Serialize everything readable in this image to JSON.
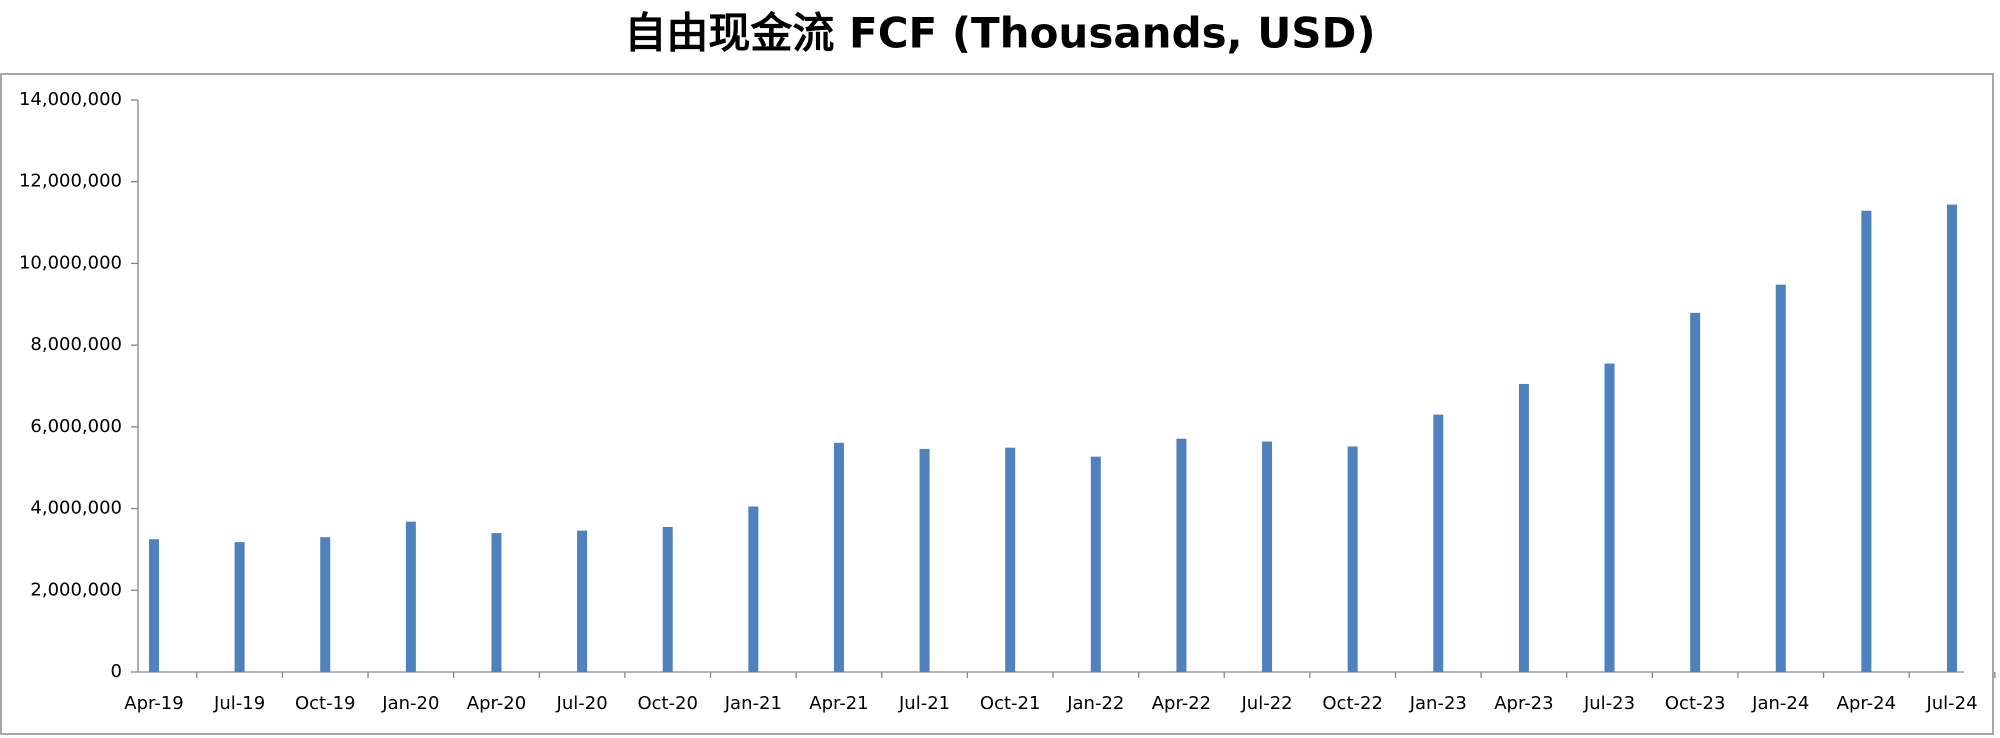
{
  "chart_data": {
    "type": "bar",
    "title": "自由现金流 FCF (Thousands, USD)",
    "categories": [
      "Apr-19",
      "Jul-19",
      "Oct-19",
      "Jan-20",
      "Apr-20",
      "Jul-20",
      "Oct-20",
      "Jan-21",
      "Apr-21",
      "Jul-21",
      "Oct-21",
      "Jan-22",
      "Apr-22",
      "Jul-22",
      "Oct-22",
      "Jan-23",
      "Apr-23",
      "Jul-23",
      "Oct-23",
      "Jan-24",
      "Apr-24",
      "Jul-24"
    ],
    "values": [
      3250000,
      3180000,
      3300000,
      3680000,
      3400000,
      3460000,
      3550000,
      4050000,
      5610000,
      5460000,
      5490000,
      5270000,
      5710000,
      5640000,
      5520000,
      6300000,
      7050000,
      7550000,
      8790000,
      9480000,
      11290000,
      11440000
    ],
    "color": "#4f81bd",
    "ylim": [
      0,
      14000000
    ],
    "yticks": [
      0,
      {
        "value": 2000000,
        "label": "2,000,000"
      },
      {
        "value": 4000000,
        "label": "4,000,000"
      },
      {
        "value": 6000000,
        "label": "6,000,000"
      },
      {
        "value": 8000000,
        "label": "8,000,000"
      },
      {
        "value": 10000000,
        "label": "10,000,000"
      },
      {
        "value": 12000000,
        "label": "12,000,000"
      },
      {
        "value": 14000000,
        "label": "14,000,000"
      }
    ],
    "grid": false
  }
}
